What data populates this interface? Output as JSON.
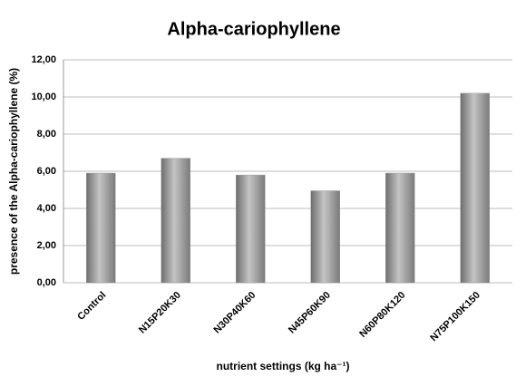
{
  "chart_data": {
    "type": "bar",
    "title": "Alpha-cariophyllene",
    "y_label": "presence of the Alpha-cariophyllene (%)",
    "x_label": "nutrient settings (kg ha⁻¹)",
    "categories": [
      "Control",
      "N15P20K30",
      "N30P40K60",
      "N45P60K90",
      "N60P80K120",
      "N75P100K150"
    ],
    "values": [
      5.9,
      6.7,
      5.8,
      4.95,
      5.9,
      10.2
    ],
    "color": "#9a9a9a",
    "ylim": [
      0,
      12
    ],
    "yticks": [
      {
        "value": 0,
        "label": "0,00"
      },
      {
        "value": 2,
        "label": "2,00"
      },
      {
        "value": 4,
        "label": "4,00"
      },
      {
        "value": 6,
        "label": "6,00"
      },
      {
        "value": 8,
        "label": "8,00"
      },
      {
        "value": 10,
        "label": "10,00"
      },
      {
        "value": 12,
        "label": "12,00"
      }
    ],
    "grid": true
  }
}
